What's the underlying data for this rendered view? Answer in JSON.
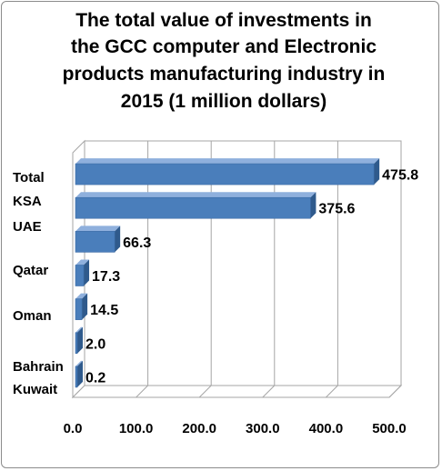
{
  "chart_data": {
    "type": "bar",
    "orientation": "horizontal",
    "title_lines": [
      "The total value of investments in",
      "the GCC computer and Electronic",
      "products manufacturing industry in",
      "2015 (1 million dollars)"
    ],
    "categories": [
      "Total",
      "KSA",
      "UAE",
      "Qatar",
      "Oman",
      "Bahrain",
      "Kuwait"
    ],
    "values": [
      475.8,
      375.6,
      66.3,
      17.3,
      14.5,
      2.0,
      0.2
    ],
    "value_labels": [
      "475.8",
      "375.6",
      "66.3",
      "17.3",
      "14.5",
      "2.0",
      "0.2"
    ],
    "x_ticks": [
      "0.0",
      "100.0",
      "200.0",
      "300.0",
      "400.0",
      "500.0"
    ],
    "xlim": [
      0,
      500
    ],
    "grid": true,
    "style_3d": true,
    "colors": {
      "bar_front": "#4a7ebb",
      "bar_top": "#8fb0dd",
      "bar_side": "#2f5a8c",
      "grid": "#a6a6a6",
      "frame": "#8c8c8c"
    }
  }
}
